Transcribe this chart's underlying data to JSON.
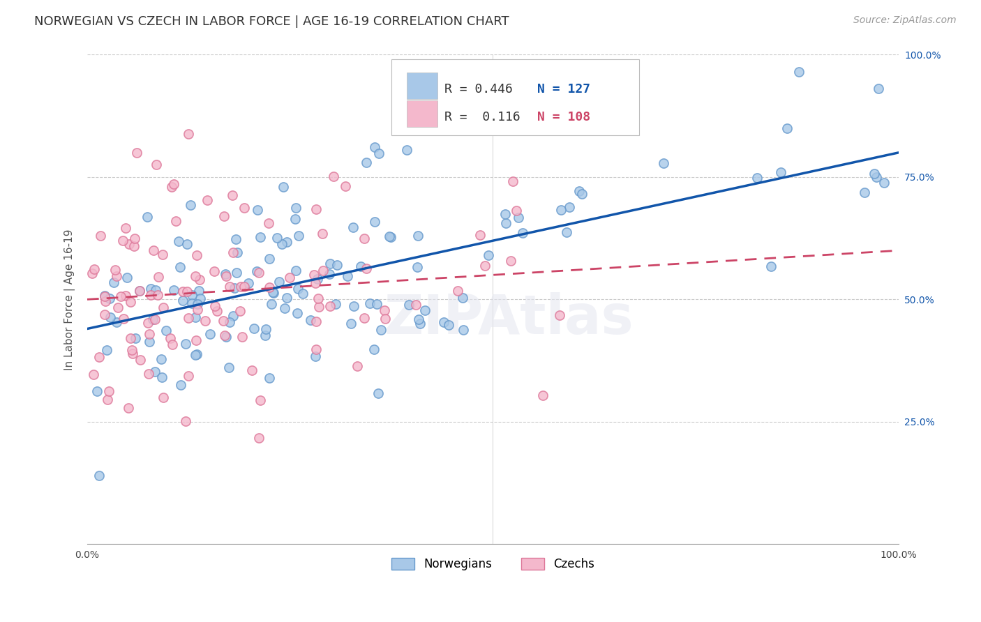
{
  "title": "NORWEGIAN VS CZECH IN LABOR FORCE | AGE 16-19 CORRELATION CHART",
  "source": "Source: ZipAtlas.com",
  "ylabel": "In Labor Force | Age 16-19",
  "xlim": [
    0.0,
    1.0
  ],
  "ylim": [
    0.0,
    1.0
  ],
  "norwegian_color": "#a8c8e8",
  "norwegian_edge_color": "#6699cc",
  "czech_color": "#f4b8cc",
  "czech_edge_color": "#dd7799",
  "norwegian_line_color": "#1155aa",
  "czech_line_color": "#cc4466",
  "R_norwegian": 0.446,
  "N_norwegian": 127,
  "R_czech": 0.116,
  "N_czech": 108,
  "legend_label_norwegian": "Norwegians",
  "legend_label_czech": "Czechs",
  "watermark_text": "ZIPAtlas",
  "background_color": "#ffffff",
  "grid_color": "#cccccc",
  "title_fontsize": 13,
  "axis_fontsize": 11,
  "tick_fontsize": 10,
  "legend_fontsize": 13,
  "source_fontsize": 10,
  "nor_line_x0": 0.0,
  "nor_line_y0": 0.44,
  "nor_line_x1": 1.0,
  "nor_line_y1": 0.8,
  "cze_line_x0": 0.0,
  "cze_line_y0": 0.5,
  "cze_line_x1": 1.0,
  "cze_line_y1": 0.6
}
